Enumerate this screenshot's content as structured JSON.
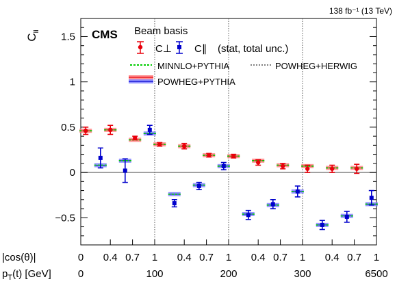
{
  "header": {
    "lumi": "138 fb⁻¹ (13 TeV)"
  },
  "labels": {
    "experiment": "CMS",
    "basis": "Beam basis",
    "ylabel": "C_ii",
    "c_perp": "C⊥",
    "c_par": "C∥",
    "unc": "(stat, total unc.)",
    "minnlo": "MINNLO+PYTHIA",
    "herwig": "POWHEG+HERWIG",
    "powheg": "POWHEG+PYTHIA",
    "xlabel_cos": "|cos(θ)|",
    "xlabel_pt": "p_T(t) [GeV]"
  },
  "chart_data": {
    "type": "scatter",
    "ylim": [
      -0.8,
      1.7
    ],
    "yticks": [
      -0.5,
      0,
      0.5,
      1,
      1.5
    ],
    "xlim": [
      0,
      12
    ],
    "cos_ticks": [
      "0",
      "0.4",
      "0.7",
      "1",
      "0.4",
      "0.7",
      "1",
      "0.4",
      "0.7",
      "1",
      "0.4",
      "0.7",
      "1"
    ],
    "pt_ticks": [
      {
        "label": "0",
        "x": 0
      },
      {
        "label": "100",
        "x": 3
      },
      {
        "label": "200",
        "x": 6
      },
      {
        "label": "300",
        "x": 9
      },
      {
        "label": "6500",
        "x": 12
      }
    ],
    "pt_boundaries": [
      3,
      6,
      9
    ],
    "series": [
      {
        "name": "C⊥",
        "color": "#e8000b",
        "marker": "circle",
        "x": [
          0.2,
          1.2,
          2.2,
          3.2,
          4.2,
          5.2,
          6.2,
          7.2,
          8.2,
          9.2,
          10.2,
          11.2
        ],
        "y": [
          0.46,
          0.47,
          0.38,
          0.31,
          0.29,
          0.19,
          0.18,
          0.11,
          0.07,
          0.04,
          0.04,
          0.04
        ],
        "err": [
          0.04,
          0.05,
          0.02,
          0.02,
          0.03,
          0.02,
          0.02,
          0.03,
          0.03,
          0.04,
          0.04,
          0.05
        ],
        "pred_minnlo": [
          0.46,
          0.47,
          0.36,
          0.31,
          0.29,
          0.19,
          0.18,
          0.13,
          0.08,
          0.07,
          0.05,
          0.05
        ],
        "pred_powheg": [
          0.46,
          0.47,
          0.36,
          0.31,
          0.29,
          0.19,
          0.18,
          0.13,
          0.08,
          0.07,
          0.05,
          0.05
        ]
      },
      {
        "name": "C∥",
        "color": "#0000cc",
        "marker": "square",
        "x": [
          0.8,
          1.8,
          2.8,
          3.8,
          4.8,
          5.8,
          6.8,
          7.8,
          8.8,
          9.8,
          10.8,
          11.8
        ],
        "y": [
          0.16,
          0.02,
          0.47,
          -0.34,
          -0.15,
          0.07,
          -0.47,
          -0.35,
          -0.21,
          -0.58,
          -0.49,
          -0.28
        ],
        "err": [
          0.11,
          0.13,
          0.05,
          0.04,
          0.04,
          0.04,
          0.05,
          0.05,
          0.06,
          0.05,
          0.06,
          0.08
        ],
        "pred_minnlo": [
          0.08,
          0.13,
          0.43,
          -0.24,
          -0.14,
          0.07,
          -0.46,
          -0.36,
          -0.21,
          -0.58,
          -0.48,
          -0.35
        ],
        "pred_powheg": [
          0.08,
          0.13,
          0.43,
          -0.24,
          -0.14,
          0.07,
          -0.46,
          -0.36,
          -0.21,
          -0.58,
          -0.48,
          -0.35
        ]
      }
    ]
  }
}
